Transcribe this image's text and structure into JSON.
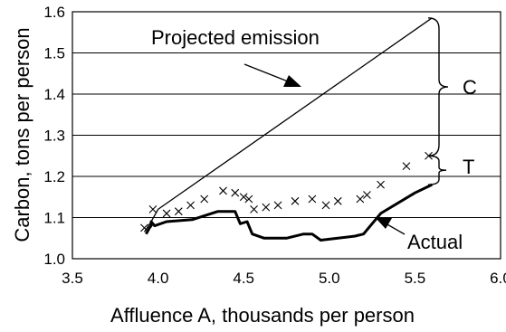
{
  "chart_data": {
    "type": "line",
    "xlabel": "Affluence A, thousands per person",
    "ylabel": "Carbon, tons per person",
    "xlim": [
      3.5,
      6.0
    ],
    "ylim": [
      1.0,
      1.6
    ],
    "x_ticks": [
      "3.5",
      "4.0",
      "4.5",
      "5.0",
      "5.5",
      "6.0"
    ],
    "y_ticks": [
      "1.0",
      "1.1",
      "1.2",
      "1.3",
      "1.4",
      "1.5",
      "1.6"
    ],
    "grid": "horizontal",
    "series": [
      {
        "name": "Projected emission",
        "style": "thin-line",
        "points": [
          [
            3.92,
            1.065
          ],
          [
            3.96,
            1.09
          ],
          [
            4.0,
            1.12
          ],
          [
            5.6,
            1.585
          ]
        ]
      },
      {
        "name": "Actual",
        "style": "thick-line",
        "points": [
          [
            3.93,
            1.06
          ],
          [
            3.95,
            1.075
          ],
          [
            3.96,
            1.08
          ],
          [
            3.96,
            1.09
          ],
          [
            3.98,
            1.08
          ],
          [
            4.05,
            1.09
          ],
          [
            4.2,
            1.095
          ],
          [
            4.35,
            1.115
          ],
          [
            4.45,
            1.115
          ],
          [
            4.48,
            1.085
          ],
          [
            4.52,
            1.09
          ],
          [
            4.55,
            1.06
          ],
          [
            4.62,
            1.05
          ],
          [
            4.75,
            1.05
          ],
          [
            4.85,
            1.06
          ],
          [
            4.9,
            1.06
          ],
          [
            4.95,
            1.045
          ],
          [
            5.05,
            1.05
          ],
          [
            5.15,
            1.055
          ],
          [
            5.2,
            1.06
          ],
          [
            5.3,
            1.11
          ],
          [
            5.5,
            1.16
          ],
          [
            5.6,
            1.18
          ]
        ]
      },
      {
        "name": "",
        "style": "x-markers",
        "points": [
          [
            3.92,
            1.075
          ],
          [
            3.97,
            1.12
          ],
          [
            4.05,
            1.11
          ],
          [
            4.12,
            1.115
          ],
          [
            4.19,
            1.13
          ],
          [
            4.27,
            1.145
          ],
          [
            4.38,
            1.165
          ],
          [
            4.45,
            1.16
          ],
          [
            4.5,
            1.15
          ],
          [
            4.53,
            1.145
          ],
          [
            4.56,
            1.12
          ],
          [
            4.63,
            1.125
          ],
          [
            4.7,
            1.13
          ],
          [
            4.8,
            1.14
          ],
          [
            4.9,
            1.145
          ],
          [
            4.98,
            1.13
          ],
          [
            5.05,
            1.14
          ],
          [
            5.18,
            1.145
          ],
          [
            5.22,
            1.155
          ],
          [
            5.3,
            1.18
          ],
          [
            5.45,
            1.225
          ],
          [
            5.58,
            1.25
          ]
        ]
      }
    ],
    "annotations": {
      "projected_label": "Projected emission",
      "actual_label": "Actual",
      "bracket_c": "C",
      "bracket_t": "T"
    }
  }
}
